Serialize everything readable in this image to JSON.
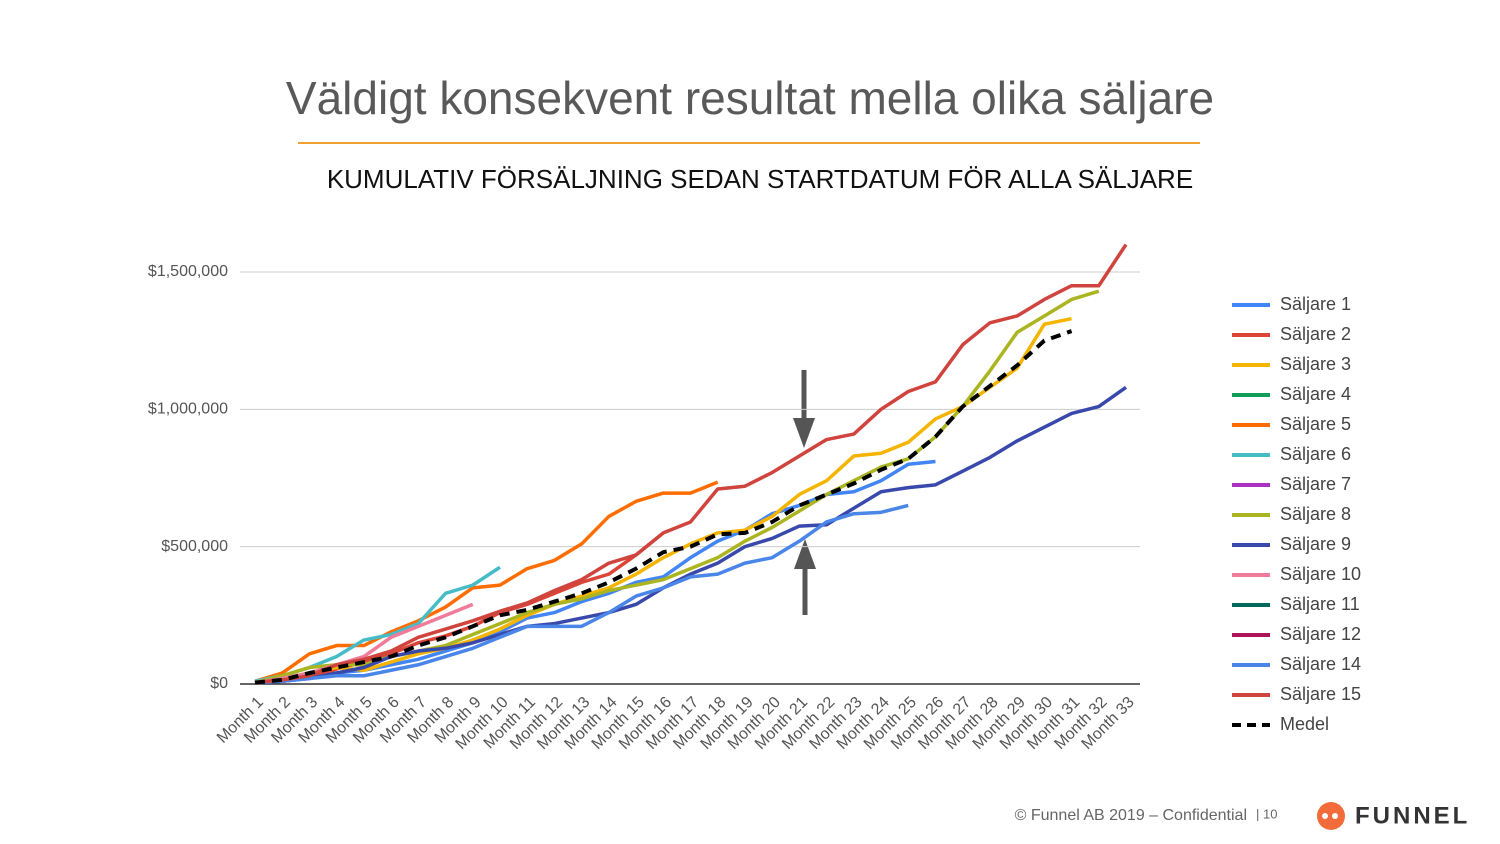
{
  "chart_data": {
    "type": "line",
    "title": "Väldigt konsekvent resultat mella olika säljare",
    "subtitle": "KUMULATIV FÖRSÄLJNING SEDAN STARTDATUM FÖR ALLA SÄLJARE",
    "categories": [
      "Month 1",
      "Month 2",
      "Month 3",
      "Month 4",
      "Month 5",
      "Month 6",
      "Month 7",
      "Month 8",
      "Month 9",
      "Month 10",
      "Month 11",
      "Month 12",
      "Month 13",
      "Month 14",
      "Month 15",
      "Month 16",
      "Month 17",
      "Month 18",
      "Month 19",
      "Month 20",
      "Month 21",
      "Month 22",
      "Month 23",
      "Month 24",
      "Month 25",
      "Month 26",
      "Month 27",
      "Month 28",
      "Month 29",
      "Month 30",
      "Month 31",
      "Month 32",
      "Month 33"
    ],
    "ylim": [
      0,
      1650000
    ],
    "yticks": [
      {
        "value": 0,
        "label": "$0"
      },
      {
        "value": 500000,
        "label": "$500,000"
      },
      {
        "value": 1000000,
        "label": "$1,000,000"
      },
      {
        "value": 1500000,
        "label": "$1,500,000"
      }
    ],
    "grid": true,
    "legend": "right",
    "series": [
      {
        "name": "Säljare 1",
        "color": "#4285f4",
        "values": [
          5000,
          10000,
          30000,
          40000,
          50000,
          70000,
          90000,
          120000,
          150000,
          190000,
          240000,
          260000,
          300000,
          330000,
          370000,
          390000,
          460000,
          520000,
          560000,
          620000,
          650000,
          690000,
          700000,
          740000,
          800000,
          810000,
          null,
          null,
          null,
          null,
          null,
          null,
          null
        ]
      },
      {
        "name": "Säljare 2",
        "color": "#db4437",
        "values": [
          5000,
          10000,
          25000,
          55000,
          80000,
          110000,
          150000,
          175000,
          210000,
          260000,
          290000,
          330000,
          370000,
          400000,
          470000,
          550000,
          null,
          null,
          null,
          null,
          null,
          null,
          null,
          null,
          null,
          null,
          null,
          null,
          null,
          null,
          null,
          null,
          null
        ]
      },
      {
        "name": "Säljare 3",
        "color": "#f4b400",
        "values": [
          5000,
          20000,
          40000,
          60000,
          50000,
          80000,
          110000,
          130000,
          160000,
          200000,
          250000,
          290000,
          320000,
          350000,
          400000,
          460000,
          510000,
          550000,
          560000,
          610000,
          690000,
          740000,
          830000,
          840000,
          880000,
          965000,
          1010000,
          1080000,
          1150000,
          1310000,
          1330000,
          null,
          null
        ]
      },
      {
        "name": "Säljare 4",
        "color": "#0f9d58",
        "values": [
          null,
          null,
          null,
          null,
          null,
          null,
          null,
          null,
          null,
          null,
          null,
          null,
          null,
          null,
          null,
          null,
          null,
          null,
          null,
          null,
          null,
          null,
          null,
          null,
          null,
          null,
          null,
          null,
          null,
          null,
          null,
          null,
          null
        ]
      },
      {
        "name": "Säljare 5",
        "color": "#ff6d00",
        "values": [
          10000,
          40000,
          110000,
          140000,
          140000,
          190000,
          230000,
          280000,
          350000,
          360000,
          420000,
          450000,
          510000,
          610000,
          665000,
          695000,
          695000,
          735000,
          null,
          null,
          null,
          null,
          null,
          null,
          null,
          null,
          null,
          null,
          null,
          null,
          null,
          null,
          null
        ]
      },
      {
        "name": "Säljare 6",
        "color": "#46bdc6",
        "values": [
          10000,
          30000,
          60000,
          100000,
          160000,
          180000,
          220000,
          330000,
          360000,
          425000,
          null,
          null,
          null,
          null,
          null,
          null,
          null,
          null,
          null,
          null,
          null,
          null,
          null,
          null,
          null,
          null,
          null,
          null,
          null,
          null,
          null,
          null,
          null
        ]
      },
      {
        "name": "Säljare 7",
        "color": "#ab30c4",
        "values": [
          null,
          null,
          null,
          null,
          null,
          null,
          null,
          null,
          null,
          null,
          null,
          null,
          null,
          null,
          null,
          null,
          null,
          null,
          null,
          null,
          null,
          null,
          null,
          null,
          null,
          null,
          null,
          null,
          null,
          null,
          null,
          null,
          null
        ]
      },
      {
        "name": "Säljare 8",
        "color": "#abb521",
        "values": [
          5000,
          30000,
          60000,
          70000,
          70000,
          100000,
          120000,
          140000,
          180000,
          220000,
          260000,
          290000,
          310000,
          340000,
          360000,
          380000,
          420000,
          460000,
          520000,
          570000,
          630000,
          690000,
          740000,
          790000,
          820000,
          900000,
          1010000,
          1140000,
          1280000,
          1340000,
          1400000,
          1430000,
          null
        ]
      },
      {
        "name": "Säljare 9",
        "color": "#3949ab",
        "values": [
          5000,
          10000,
          20000,
          40000,
          60000,
          100000,
          120000,
          130000,
          150000,
          180000,
          210000,
          220000,
          240000,
          260000,
          290000,
          350000,
          400000,
          440000,
          500000,
          530000,
          575000,
          580000,
          640000,
          700000,
          715000,
          725000,
          775000,
          825000,
          885000,
          935000,
          985000,
          1010000,
          1080000
        ]
      },
      {
        "name": "Säljare 10",
        "color": "#f07b9a",
        "values": [
          5000,
          20000,
          40000,
          70000,
          100000,
          170000,
          210000,
          250000,
          290000,
          null,
          null,
          null,
          null,
          null,
          null,
          null,
          null,
          null,
          null,
          null,
          null,
          null,
          null,
          null,
          null,
          null,
          null,
          null,
          null,
          null,
          null,
          null,
          null
        ]
      },
      {
        "name": "Säljare 11",
        "color": "#00695c",
        "values": [
          null,
          null,
          null,
          null,
          null,
          null,
          null,
          null,
          null,
          null,
          null,
          null,
          null,
          null,
          null,
          null,
          null,
          null,
          null,
          null,
          null,
          null,
          null,
          null,
          null,
          null,
          null,
          null,
          null,
          null,
          null,
          null,
          null
        ]
      },
      {
        "name": "Säljare 12",
        "color": "#ad1457",
        "values": [
          null,
          null,
          null,
          null,
          null,
          null,
          null,
          null,
          null,
          null,
          null,
          null,
          null,
          null,
          null,
          null,
          null,
          null,
          null,
          null,
          null,
          null,
          null,
          null,
          null,
          null,
          null,
          null,
          null,
          null,
          null,
          null,
          null
        ]
      },
      {
        "name": "Säljare 14",
        "color": "#4a86e8",
        "values": [
          5000,
          10000,
          20000,
          30000,
          30000,
          50000,
          70000,
          100000,
          130000,
          170000,
          210000,
          210000,
          210000,
          260000,
          320000,
          350000,
          390000,
          400000,
          440000,
          460000,
          520000,
          590000,
          620000,
          625000,
          650000,
          null,
          null,
          null,
          null,
          null,
          null,
          null,
          null
        ]
      },
      {
        "name": "Säljare 15",
        "color": "#d0443e",
        "values": [
          5000,
          15000,
          30000,
          70000,
          90000,
          120000,
          170000,
          200000,
          230000,
          265000,
          295000,
          340000,
          380000,
          440000,
          470000,
          550000,
          590000,
          710000,
          720000,
          770000,
          830000,
          890000,
          910000,
          1000000,
          1065000,
          1100000,
          1235000,
          1315000,
          1340000,
          1400000,
          1450000,
          1450000,
          1600000
        ]
      },
      {
        "name": "Medel",
        "color": "#000000",
        "dashed": true,
        "values": [
          5000,
          15000,
          40000,
          60000,
          80000,
          100000,
          140000,
          170000,
          210000,
          250000,
          270000,
          300000,
          330000,
          370000,
          420000,
          480000,
          500000,
          545000,
          550000,
          590000,
          650000,
          690000,
          730000,
          780000,
          820000,
          900000,
          1010000,
          1085000,
          1160000,
          1250000,
          1285000,
          null,
          null
        ]
      }
    ]
  },
  "footer": {
    "copyright": "© Funnel AB 2019 – Confidential",
    "page": "| 10",
    "logo": "FUNNEL"
  }
}
